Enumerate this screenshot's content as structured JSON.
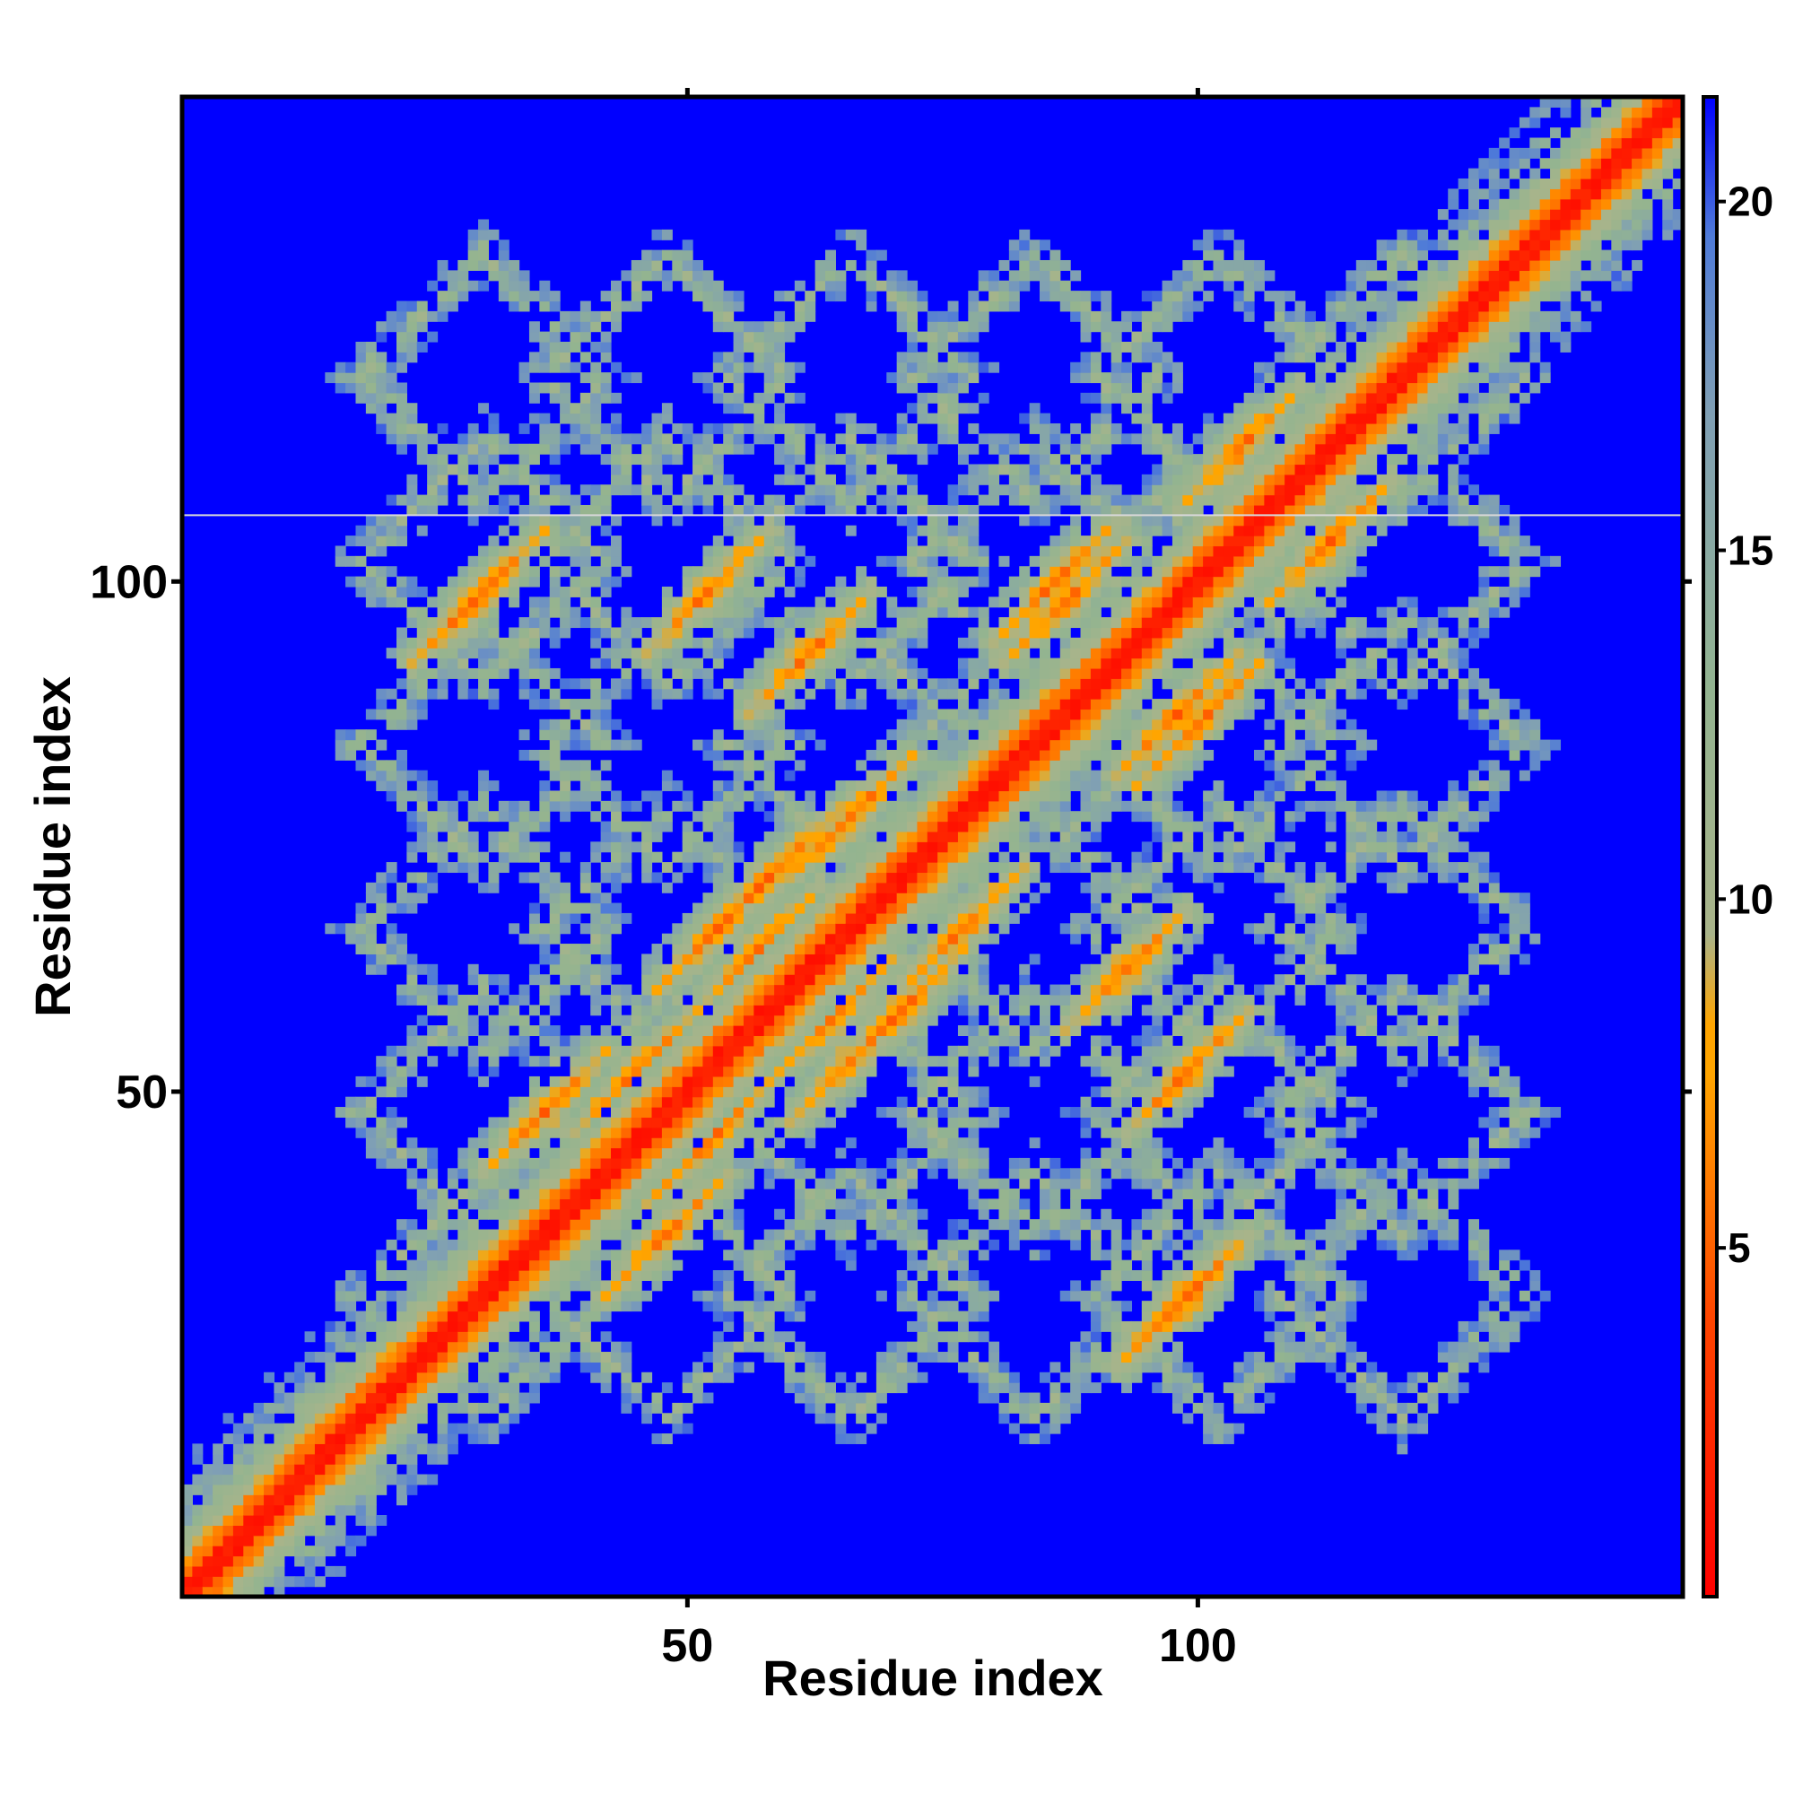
{
  "chart_data": {
    "type": "heatmap",
    "title": "",
    "xlabel": "Residue index",
    "ylabel": "Residue index",
    "xlim": [
      1,
      147
    ],
    "ylim": [
      1,
      147
    ],
    "x_ticks": [
      {
        "value": 50,
        "label": "50"
      },
      {
        "value": 100,
        "label": "100"
      }
    ],
    "y_ticks": [
      {
        "value": 50,
        "label": "50"
      },
      {
        "value": 100,
        "label": "100"
      }
    ],
    "colorbar": {
      "range": [
        0,
        21.5
      ],
      "ticks": [
        {
          "value": 5,
          "label": "5"
        },
        {
          "value": 10,
          "label": "10"
        },
        {
          "value": 15,
          "label": "15"
        },
        {
          "value": 20,
          "label": "20"
        }
      ],
      "stops": [
        {
          "value": 0,
          "color": "#ff0000"
        },
        {
          "value": 4,
          "color": "#ff4500"
        },
        {
          "value": 7.5,
          "color": "#ffa500"
        },
        {
          "value": 8.2,
          "color": "#ffa500"
        },
        {
          "value": 9.5,
          "color": "#a9b48a"
        },
        {
          "value": 13,
          "color": "#93b490"
        },
        {
          "value": 17,
          "color": "#7f9fb5"
        },
        {
          "value": 19.5,
          "color": "#4f7bd8"
        },
        {
          "value": 21.5,
          "color": "#0000ff"
        }
      ]
    },
    "background_value": 21.5,
    "grid": false,
    "features": [
      {
        "kind": "diagonal",
        "note": "main diagonal, distance ~0-4 A"
      },
      {
        "kind": "anti_diagonal_contacts",
        "pairs": [
          [
            36,
            48
          ],
          [
            45,
            52
          ],
          [
            57,
            64
          ],
          [
            66,
            77
          ],
          [
            72,
            72
          ],
          [
            86,
            100
          ],
          [
            104,
            113
          ],
          [
            62,
            93
          ],
          [
            52,
            99
          ],
          [
            87,
            98
          ],
          [
            99,
            30
          ],
          [
            71,
            58
          ],
          [
            66,
            53
          ],
          [
            98,
            29
          ]
        ]
      },
      {
        "kind": "lattice_cells",
        "centers": [
          30,
          48,
          66,
          84,
          102,
          120
        ]
      }
    ]
  }
}
